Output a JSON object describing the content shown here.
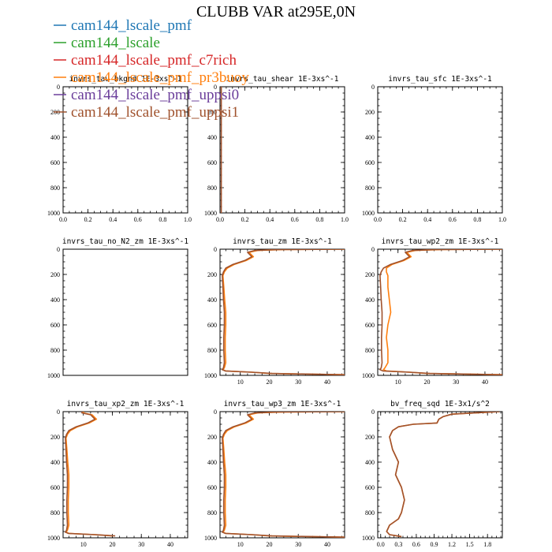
{
  "title": "CLUBB VAR at295E,0N",
  "legend": [
    {
      "name": "cam144_lscale_pmf",
      "color": "#1f77b4"
    },
    {
      "name": "cam144_lscale",
      "color": "#2ca02c"
    },
    {
      "name": "cam144_lscale_pmf_c7rich",
      "color": "#d62728"
    },
    {
      "name": "cam144_lscale_pmf_pr3buoy",
      "color": "#ff7f0e"
    },
    {
      "name": "cam144_lscale_pmf_uppsi0",
      "color": "#6a3d9a"
    },
    {
      "name": "cam144_lscale_pmf_uppsi1",
      "color": "#a0522d"
    }
  ],
  "chart_data": [
    {
      "type": "line",
      "title": "invrs_tau_bkgnd   1E-3xs^-1",
      "xlim": [
        0,
        1
      ],
      "ylim": [
        1000,
        0
      ],
      "xticks": [
        "0.0",
        "0.2",
        "0.4",
        "0.6",
        "0.8",
        "1.0"
      ],
      "yticks": [
        "0",
        "200",
        "400",
        "600",
        "800",
        "1000"
      ],
      "series": []
    },
    {
      "type": "line",
      "title": "invrs_tau_shear   1E-3xs^-1",
      "xlim": [
        0,
        1
      ],
      "ylim": [
        1000,
        0
      ],
      "xticks": [
        "0.0",
        "0.2",
        "0.4",
        "0.6",
        "0.8",
        "1.0"
      ],
      "yticks": [
        "0",
        "200",
        "400",
        "600",
        "800",
        "1000"
      ],
      "series": [
        {
          "name": "cam144_lscale_pmf_uppsi1",
          "color": "#a0522d",
          "x": [
            0.01,
            0.01,
            0.01,
            0.01,
            0.01,
            0.01,
            0.01
          ],
          "y": [
            0,
            100,
            300,
            500,
            700,
            900,
            1000
          ]
        }
      ]
    },
    {
      "type": "line",
      "title": "invrs_tau_sfc   1E-3xs^-1",
      "xlim": [
        0,
        1
      ],
      "ylim": [
        1000,
        0
      ],
      "xticks": [
        "0.0",
        "0.2",
        "0.4",
        "0.6",
        "0.8",
        "1.0"
      ],
      "yticks": [
        "0",
        "200",
        "400",
        "600",
        "800",
        "1000"
      ],
      "series": []
    },
    {
      "type": "line",
      "title": "invrs_tau_no_N2_zm   1E-3xs^-1",
      "xlim": [
        0,
        1
      ],
      "ylim": [
        1000,
        0
      ],
      "xticks": [],
      "yticks": [
        "0",
        "200",
        "400",
        "600",
        "800",
        "1000"
      ],
      "series": []
    },
    {
      "type": "line",
      "title": "invrs_tau_zm   1E-3xs^-1",
      "xlim": [
        3,
        46
      ],
      "ylim": [
        1000,
        0
      ],
      "xticks": [
        "10",
        "20",
        "30",
        "40"
      ],
      "xtickvals": [
        10,
        20,
        30,
        40
      ],
      "yticks": [
        "0",
        "200",
        "400",
        "600",
        "800",
        "1000"
      ],
      "series": [
        {
          "name": "cam144_lscale_pmf_pr3buoy",
          "color": "#ff7f0e",
          "x": [
            46,
            25,
            16,
            13,
            14.5,
            12,
            8,
            5.5,
            4.5,
            4,
            4.3,
            4.6,
            5,
            5,
            4.8,
            4.8,
            5,
            4.5,
            4,
            5,
            14,
            20,
            46
          ],
          "y": [
            0,
            3,
            10,
            25,
            60,
            90,
            120,
            150,
            180,
            210,
            300,
            400,
            500,
            600,
            700,
            800,
            900,
            940,
            955,
            965,
            975,
            985,
            995
          ]
        },
        {
          "name": "cam144_lscale_pmf_uppsi1",
          "color": "#a0522d",
          "x": [
            46,
            23,
            15,
            12.5,
            14,
            11.5,
            7.5,
            5,
            4.2,
            3.8,
            4,
            4.2,
            4.5,
            4.5,
            4.3,
            4.3,
            4.5,
            4.2,
            3.8,
            4.8,
            14,
            21,
            46
          ],
          "y": [
            0,
            3,
            10,
            25,
            60,
            90,
            120,
            150,
            180,
            210,
            300,
            400,
            500,
            600,
            700,
            800,
            900,
            940,
            955,
            965,
            975,
            985,
            995
          ]
        }
      ]
    },
    {
      "type": "line",
      "title": "invrs_tau_wp2_zm   1E-3xs^-1",
      "xlim": [
        3,
        46
      ],
      "ylim": [
        1000,
        0
      ],
      "xticks": [
        "10",
        "20",
        "30",
        "40"
      ],
      "xtickvals": [
        10,
        20,
        30,
        40
      ],
      "yticks": [
        "0",
        "200",
        "400",
        "600",
        "800",
        "1000"
      ],
      "series": [
        {
          "name": "cam144_lscale_pmf_pr3buoy",
          "color": "#ff7f0e",
          "x": [
            46,
            25,
            16,
            13,
            14.5,
            12,
            8,
            6,
            6,
            6.5,
            6.5,
            7,
            7.5,
            6.5,
            6,
            6.5,
            6.5,
            5.5,
            5,
            6,
            14,
            20,
            46
          ],
          "y": [
            0,
            3,
            10,
            25,
            60,
            90,
            120,
            150,
            180,
            210,
            300,
            400,
            500,
            600,
            700,
            800,
            900,
            940,
            955,
            965,
            975,
            985,
            995
          ]
        },
        {
          "name": "cam144_lscale_pmf_uppsi1",
          "color": "#a0522d",
          "x": [
            46,
            23,
            15,
            12.5,
            14,
            11.5,
            7.5,
            5,
            4.2,
            3.8,
            4,
            4.2,
            4.5,
            4.5,
            4.3,
            4.3,
            4.5,
            4.2,
            3.8,
            4.8,
            14,
            21,
            46
          ],
          "y": [
            0,
            3,
            10,
            25,
            60,
            90,
            120,
            150,
            180,
            210,
            300,
            400,
            500,
            600,
            700,
            800,
            900,
            940,
            955,
            965,
            975,
            985,
            995
          ]
        }
      ]
    },
    {
      "type": "line",
      "title": "invrs_tau_xp2_zm   1E-3xs^-1",
      "xlim": [
        3,
        46
      ],
      "ylim": [
        1000,
        0
      ],
      "xticks": [
        "10",
        "20",
        "30",
        "40"
      ],
      "xtickvals": [
        10,
        20,
        30,
        40
      ],
      "yticks": [
        "0",
        "200",
        "400",
        "600",
        "800",
        "1000"
      ],
      "series": [
        {
          "name": "cam144_lscale_pmf_pr3buoy",
          "color": "#ff7f0e",
          "x": [
            10,
            10,
            13,
            14.5,
            12,
            8,
            5.5,
            4.5,
            4,
            4.3,
            4.6,
            5,
            5,
            4.8,
            4.8,
            5,
            4.5,
            4,
            5,
            14,
            20
          ],
          "y": [
            0,
            10,
            25,
            60,
            90,
            120,
            150,
            180,
            210,
            300,
            400,
            500,
            600,
            700,
            800,
            900,
            940,
            955,
            965,
            975,
            985
          ]
        },
        {
          "name": "cam144_lscale_pmf_uppsi1",
          "color": "#a0522d",
          "x": [
            9.5,
            9.5,
            12.5,
            14,
            11.5,
            7.5,
            5,
            4.2,
            3.8,
            4,
            4.2,
            4.5,
            4.5,
            4.3,
            4.3,
            4.5,
            4.2,
            3.8,
            4.8,
            14,
            21
          ],
          "y": [
            0,
            10,
            25,
            60,
            90,
            120,
            150,
            180,
            210,
            300,
            400,
            500,
            600,
            700,
            800,
            900,
            940,
            955,
            965,
            975,
            985
          ]
        }
      ]
    },
    {
      "type": "line",
      "title": "invrs_tau_wp3_zm   1E-3xs^-1",
      "xlim": [
        3,
        46
      ],
      "ylim": [
        1000,
        0
      ],
      "xticks": [
        "10",
        "20",
        "30",
        "40"
      ],
      "xtickvals": [
        10,
        20,
        30,
        40
      ],
      "yticks": [
        "0",
        "200",
        "400",
        "600",
        "800",
        "1000"
      ],
      "series": [
        {
          "name": "cam144_lscale_pmf_pr3buoy",
          "color": "#ff7f0e",
          "x": [
            46,
            25,
            16,
            13,
            14.5,
            12,
            8,
            5.5,
            4.5,
            4,
            4.3,
            4.6,
            5,
            5,
            4.8,
            4.8,
            5,
            4.5,
            4,
            5,
            14,
            20,
            46
          ],
          "y": [
            0,
            3,
            10,
            25,
            60,
            90,
            120,
            150,
            180,
            210,
            300,
            400,
            500,
            600,
            700,
            800,
            900,
            940,
            955,
            965,
            975,
            985,
            995
          ]
        },
        {
          "name": "cam144_lscale_pmf_uppsi1",
          "color": "#a0522d",
          "x": [
            46,
            23,
            15,
            12.5,
            14,
            11.5,
            7.5,
            5,
            4.2,
            3.8,
            4,
            4.2,
            4.5,
            4.5,
            4.3,
            4.3,
            4.5,
            4.2,
            3.8,
            4.8,
            14,
            21,
            46
          ],
          "y": [
            0,
            3,
            10,
            25,
            60,
            90,
            120,
            150,
            180,
            210,
            300,
            400,
            500,
            600,
            700,
            800,
            900,
            940,
            955,
            965,
            975,
            985,
            995
          ]
        }
      ]
    },
    {
      "type": "line",
      "title": "bv_freq_sqd   1E-3x1/s^2",
      "xlim": [
        -0.05,
        2.05
      ],
      "ylim": [
        1000,
        0
      ],
      "xticks": [
        "0.0",
        "0.3",
        "0.6",
        "0.9",
        "1.2",
        "1.5",
        "1.8"
      ],
      "xtickvals": [
        0,
        0.3,
        0.6,
        0.9,
        1.2,
        1.5,
        1.8
      ],
      "yticks": [
        "0",
        "200",
        "400",
        "600",
        "800",
        "1000"
      ],
      "series": [
        {
          "name": "cam144_lscale_pmf_pr3buoy",
          "color": "#ff7f0e",
          "x": [
            2.0,
            1.2,
            1.05,
            0.98,
            0.95,
            0.55,
            0.3,
            0.2,
            0.15,
            0.2,
            0.3,
            0.25,
            0.35,
            0.4,
            0.35,
            0.3,
            0.15,
            0.1,
            0.15,
            0.35
          ],
          "y": [
            0,
            20,
            40,
            60,
            90,
            100,
            120,
            150,
            200,
            300,
            400,
            500,
            600,
            700,
            800,
            850,
            900,
            950,
            975,
            990
          ]
        },
        {
          "name": "cam144_lscale_pmf_uppsi1",
          "color": "#a0522d",
          "x": [
            2.0,
            1.2,
            1.05,
            0.98,
            0.95,
            0.55,
            0.3,
            0.2,
            0.15,
            0.2,
            0.3,
            0.25,
            0.35,
            0.4,
            0.35,
            0.3,
            0.15,
            0.1,
            0.15,
            0.35
          ],
          "y": [
            0,
            20,
            40,
            60,
            90,
            100,
            120,
            150,
            200,
            300,
            400,
            500,
            600,
            700,
            800,
            850,
            900,
            950,
            975,
            990
          ]
        }
      ]
    }
  ]
}
